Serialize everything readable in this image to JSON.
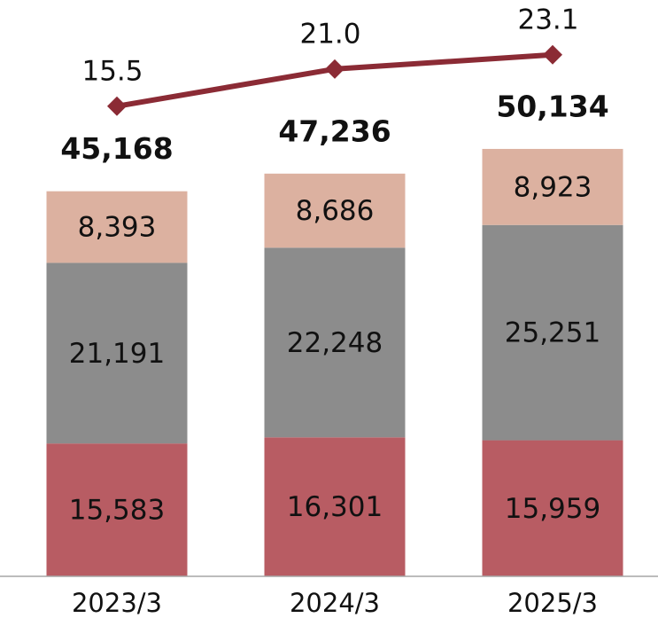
{
  "chart_data": {
    "type": "bar",
    "stacked": true,
    "categories": [
      "2023/3",
      "2024/3",
      "2025/3"
    ],
    "series": [
      {
        "color": "#b85c63",
        "values": [
          15583,
          16301,
          15959
        ],
        "value_labels": [
          "15,583",
          "16,301",
          "15,959"
        ]
      },
      {
        "color": "#8c8c8c",
        "values": [
          21191,
          22248,
          25251
        ],
        "value_labels": [
          "21,191",
          "22,248",
          "25,251"
        ]
      },
      {
        "color": "#dcb1a0",
        "values": [
          8393,
          8686,
          8923
        ],
        "value_labels": [
          "8,393",
          "8,686",
          "8,923"
        ]
      },
      {
        "type": "line",
        "axis": "y2",
        "color": "#8b2b35",
        "values": [
          15.5,
          21.0,
          23.1
        ],
        "value_labels": [
          "15.5",
          "21.0",
          "23.1"
        ]
      }
    ],
    "totals": [
      45168,
      47236,
      50134
    ],
    "total_labels": [
      "45,168",
      "47,236",
      "50,134"
    ],
    "ylim": [
      0,
      67600
    ],
    "y2lim": [
      -54,
      31.2
    ]
  }
}
